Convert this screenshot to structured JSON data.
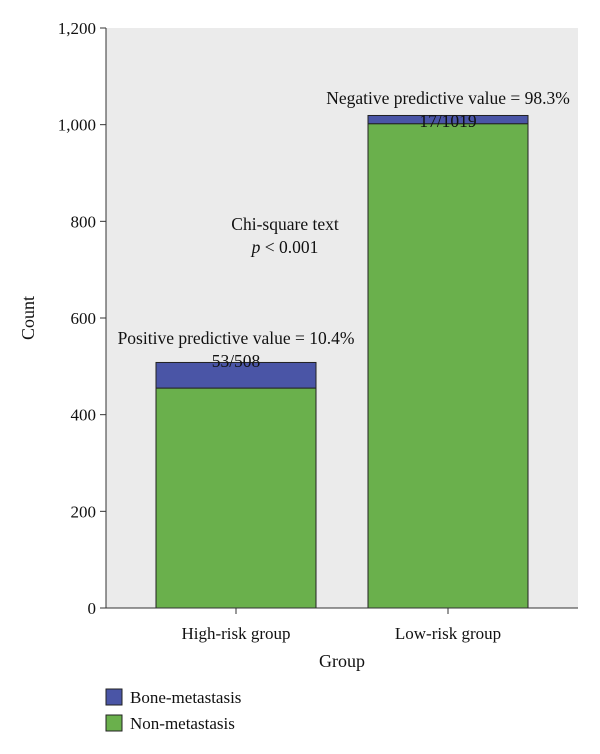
{
  "chart_data": {
    "type": "bar",
    "stacked": true,
    "categories": [
      "High-risk group",
      "Low-risk group"
    ],
    "series": [
      {
        "name": "Non-metastasis",
        "values": [
          455,
          1002
        ],
        "color": "#6ab04c"
      },
      {
        "name": "Bone-metastasis",
        "values": [
          53,
          17
        ],
        "color": "#4a55a6"
      }
    ],
    "xlabel": "Group",
    "ylabel": "Count",
    "ylim": [
      0,
      1200
    ],
    "yticks": [
      0,
      200,
      400,
      600,
      800,
      1000,
      1200
    ],
    "ytick_labels": [
      "0",
      "200",
      "400",
      "600",
      "800",
      "1,000",
      "1,200"
    ],
    "grid": false,
    "plot_background": "#ebebeb",
    "legend_position": "bottom-left",
    "annotations": {
      "high_risk": {
        "line1": "Positive predictive value = 10.4%",
        "line2": "53/508"
      },
      "low_risk": {
        "line1": "Negative predictive value = 98.3%",
        "line2": "17/1019"
      },
      "test": {
        "line1": "Chi-square text",
        "p_symbol": "p",
        "p_rest": " < 0.001"
      }
    }
  }
}
